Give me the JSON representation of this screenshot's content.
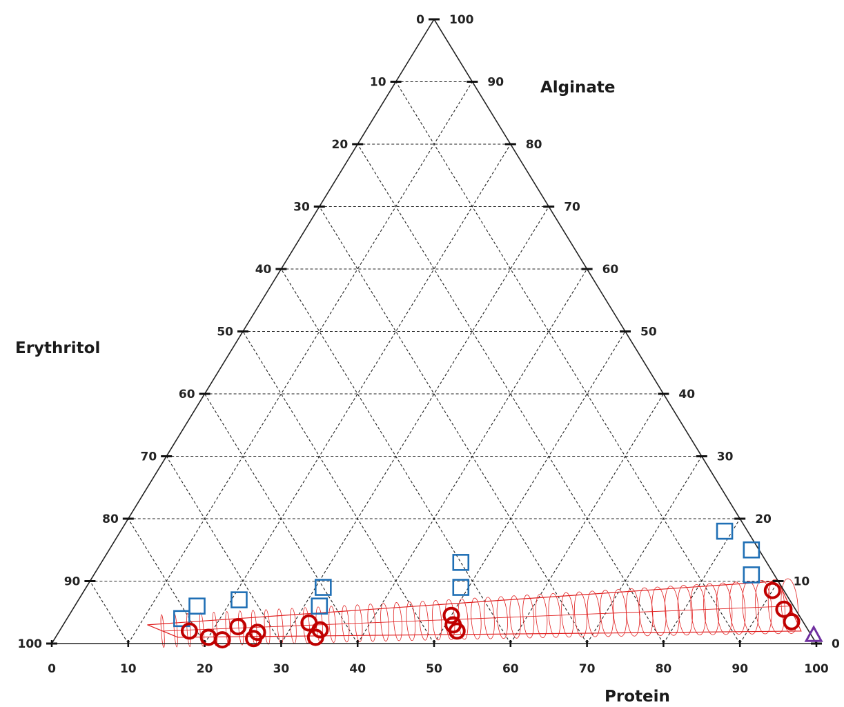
{
  "chart_data": {
    "type": "scatter",
    "subtype": "ternary",
    "axes": {
      "alginate": "Alginate",
      "erythritol": "Erythritol",
      "protein": "Protein"
    },
    "tick_values": [
      0,
      10,
      20,
      30,
      40,
      50,
      60,
      70,
      80,
      90,
      100
    ],
    "grid": true,
    "series": [
      {
        "marker": "square",
        "color": "#1f6fb5",
        "points": [
          {
            "protein": 79,
            "alginate": 18,
            "erythritol": 3
          },
          {
            "protein": 84,
            "alginate": 15,
            "erythritol": 1
          },
          {
            "protein": 86,
            "alginate": 11,
            "erythritol": 3
          },
          {
            "protein": 47,
            "alginate": 13,
            "erythritol": 40
          },
          {
            "protein": 49,
            "alginate": 9,
            "erythritol": 42
          },
          {
            "protein": 31,
            "alginate": 9,
            "erythritol": 60
          },
          {
            "protein": 32,
            "alginate": 6,
            "erythritol": 62
          },
          {
            "protein": 21,
            "alginate": 7,
            "erythritol": 72
          },
          {
            "protein": 16,
            "alginate": 6,
            "erythritol": 78
          },
          {
            "protein": 15,
            "alginate": 4,
            "erythritol": 81
          }
        ]
      },
      {
        "marker": "circle",
        "color": "#c00000",
        "points": [
          {
            "protein": 90,
            "alginate": 8.5,
            "erythritol": 1.5
          },
          {
            "protein": 93,
            "alginate": 5.5,
            "erythritol": 1.5
          },
          {
            "protein": 95,
            "alginate": 3.5,
            "erythritol": 1.5
          },
          {
            "protein": 50,
            "alginate": 4.5,
            "erythritol": 45.5
          },
          {
            "protein": 51,
            "alginate": 3,
            "erythritol": 46
          },
          {
            "protein": 52,
            "alginate": 2,
            "erythritol": 46
          },
          {
            "protein": 32,
            "alginate": 3.3,
            "erythritol": 64.7
          },
          {
            "protein": 34,
            "alginate": 2.2,
            "erythritol": 63.8
          },
          {
            "protein": 34,
            "alginate": 1,
            "erythritol": 65
          },
          {
            "protein": 23,
            "alginate": 2.7,
            "erythritol": 74.3
          },
          {
            "protein": 26,
            "alginate": 1.8,
            "erythritol": 72.2
          },
          {
            "protein": 26,
            "alginate": 0.8,
            "erythritol": 73.2
          },
          {
            "protein": 17,
            "alginate": 2,
            "erythritol": 81
          },
          {
            "protein": 20,
            "alginate": 1,
            "erythritol": 79
          },
          {
            "protein": 22,
            "alginate": 0.6,
            "erythritol": 77.4
          }
        ]
      },
      {
        "marker": "triangle",
        "color": "#7030a0",
        "points": [
          {
            "protein": 99,
            "alginate": 1.3,
            "erythritol": 0
          }
        ]
      }
    ],
    "region": {
      "color": "#e02020",
      "corners": [
        {
          "protein": 90,
          "alginate": 10,
          "erythritol": 0
        },
        {
          "protein": 97,
          "alginate": 2,
          "erythritol": 1
        },
        {
          "protein": 16,
          "alginate": 1,
          "erythritol": 83
        },
        {
          "protein": 11,
          "alginate": 3,
          "erythritol": 86
        }
      ]
    }
  }
}
